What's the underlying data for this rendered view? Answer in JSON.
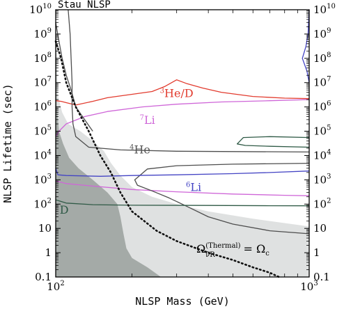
{
  "chart_data": {
    "type": "line",
    "title": "Stau NLSP",
    "xlabel": "NLSP Mass (GeV)",
    "ylabel": "NLSP Lifetime (sec)",
    "xscale": "log",
    "yscale": "log",
    "xlim": [
      100,
      1000
    ],
    "ylim": [
      0.1,
      10000000000
    ],
    "x_ticks": [
      {
        "value": 100,
        "base": "10",
        "exp": "2"
      },
      {
        "value": 1000,
        "base": "10",
        "exp": "3"
      }
    ],
    "y_ticks": [
      {
        "value": 0.1,
        "label": "0.1"
      },
      {
        "value": 1,
        "label": "1"
      },
      {
        "value": 10,
        "label": "10"
      },
      {
        "value": 100,
        "base": "10",
        "exp": "2"
      },
      {
        "value": 1000,
        "base": "10",
        "exp": "3"
      },
      {
        "value": 10000,
        "base": "10",
        "exp": "4"
      },
      {
        "value": 100000,
        "base": "10",
        "exp": "5"
      },
      {
        "value": 1000000,
        "base": "10",
        "exp": "6"
      },
      {
        "value": 10000000,
        "base": "10",
        "exp": "7"
      },
      {
        "value": 100000000,
        "base": "10",
        "exp": "8"
      },
      {
        "value": 1000000000,
        "base": "10",
        "exp": "9"
      },
      {
        "value": 10000000000,
        "base": "10",
        "exp": "10"
      }
    ],
    "regions": [
      {
        "id": "light-excluded-region",
        "color": "#dfe1e1",
        "points": [
          [
            100,
            10000000000
          ],
          [
            102,
            3000000
          ],
          [
            106,
            600000
          ],
          [
            112,
            200000
          ],
          [
            125,
            100000
          ],
          [
            140,
            40000
          ],
          [
            155,
            15000
          ],
          [
            165,
            5000
          ],
          [
            180,
            1500
          ],
          [
            200,
            500
          ],
          [
            240,
            200
          ],
          [
            300,
            100
          ],
          [
            400,
            50
          ],
          [
            600,
            25
          ],
          [
            1000,
            12
          ],
          [
            1000,
            0.1
          ],
          [
            100,
            0.1
          ]
        ]
      },
      {
        "id": "dark-excluded-region",
        "color": "#a4aaa7",
        "points": [
          [
            100,
            10000000000
          ],
          [
            101,
            1000000
          ],
          [
            103,
            100000
          ],
          [
            107,
            30000
          ],
          [
            113,
            8000
          ],
          [
            123,
            3000
          ],
          [
            140,
            1000
          ],
          [
            160,
            300
          ],
          [
            175,
            100
          ],
          [
            180,
            30
          ],
          [
            185,
            6
          ],
          [
            190,
            1.5
          ],
          [
            200,
            0.6
          ],
          [
            230,
            0.25
          ],
          [
            260,
            0.1
          ],
          [
            100,
            0.1
          ]
        ]
      }
    ],
    "series": [
      {
        "id": "he3-over-d-curve",
        "color": "#e23b2e",
        "points": [
          [
            100,
            1800000
          ],
          [
            105,
            1700000
          ],
          [
            110,
            1500000
          ],
          [
            120,
            1200000
          ],
          [
            140,
            1700000
          ],
          [
            160,
            2400000
          ],
          [
            200,
            3300000
          ],
          [
            240,
            4300000
          ],
          [
            270,
            7000000
          ],
          [
            300,
            13000000
          ],
          [
            330,
            9000000
          ],
          [
            380,
            6000000
          ],
          [
            450,
            4000000
          ],
          [
            600,
            2700000
          ],
          [
            800,
            2300000
          ],
          [
            1000,
            2200000
          ]
        ]
      },
      {
        "id": "li7-upper-curve",
        "color": "#cf66d8",
        "points": [
          [
            100,
            60000
          ],
          [
            103,
            100000
          ],
          [
            110,
            200000
          ],
          [
            130,
            400000
          ],
          [
            160,
            650000
          ],
          [
            220,
            1000000
          ],
          [
            300,
            1300000
          ],
          [
            450,
            1600000
          ],
          [
            700,
            1800000
          ],
          [
            1000,
            2000000
          ]
        ]
      },
      {
        "id": "li7-lower-curve",
        "color": "#cf66d8",
        "points": [
          [
            100,
            900
          ],
          [
            110,
            700
          ],
          [
            140,
            550
          ],
          [
            200,
            400
          ],
          [
            300,
            320
          ],
          [
            500,
            260
          ],
          [
            800,
            230
          ],
          [
            1000,
            220
          ]
        ]
      },
      {
        "id": "he4-curve",
        "color": "#4d4d4d",
        "points": [
          [
            112,
            10000000000
          ],
          [
            114,
            1000000000
          ],
          [
            115,
            100000000
          ],
          [
            116,
            10000000
          ],
          [
            116,
            1000000
          ],
          [
            117,
            200000
          ],
          [
            120,
            60000
          ],
          [
            135,
            22000
          ],
          [
            180,
            17000
          ],
          [
            300,
            15000
          ],
          [
            1000,
            14000
          ]
        ]
      },
      {
        "id": "he4-lower-curve",
        "color": "#4d4d4d",
        "points": [
          [
            100,
            3000000000
          ],
          [
            103,
            500000000
          ],
          [
            106,
            100000000
          ],
          [
            110,
            20000000
          ],
          [
            115,
            5000000
          ],
          [
            120,
            1000000
          ],
          [
            130,
            300000
          ],
          [
            140,
            100000
          ]
        ]
      },
      {
        "id": "mid-black-curve",
        "color": "#4d4d4d",
        "points": [
          [
            1000,
            6
          ],
          [
            700,
            8
          ],
          [
            500,
            15
          ],
          [
            400,
            30
          ],
          [
            330,
            80
          ],
          [
            280,
            180
          ],
          [
            240,
            350
          ],
          [
            210,
            600
          ],
          [
            205,
            1000
          ],
          [
            230,
            2800
          ],
          [
            300,
            3800
          ],
          [
            500,
            4400
          ],
          [
            1000,
            4800
          ]
        ]
      },
      {
        "id": "li6-curve",
        "color": "#4444c4",
        "points": [
          [
            100,
            3000
          ],
          [
            102,
            1600
          ],
          [
            110,
            1500
          ],
          [
            150,
            1400
          ],
          [
            200,
            1500
          ],
          [
            300,
            1600
          ],
          [
            500,
            1800
          ],
          [
            700,
            2000
          ],
          [
            1000,
            2300
          ]
        ]
      },
      {
        "id": "d-curve",
        "color": "#2f5a46",
        "points": [
          [
            100,
            150
          ],
          [
            110,
            110
          ],
          [
            140,
            95
          ],
          [
            200,
            90
          ],
          [
            400,
            88
          ],
          [
            700,
            86
          ],
          [
            1000,
            85
          ]
        ]
      },
      {
        "id": "green-loop-curve",
        "color": "#2f5a46",
        "points": [
          [
            1000,
            55000
          ],
          [
            700,
            60000
          ],
          [
            550,
            55000
          ],
          [
            520,
            30000
          ],
          [
            560,
            26000
          ],
          [
            700,
            24000
          ],
          [
            1000,
            22000
          ]
        ]
      },
      {
        "id": "blue-right-curve",
        "color": "#4444c4",
        "points": [
          [
            1000,
            10000000000
          ],
          [
            990,
            1000000000
          ],
          [
            970,
            300000000
          ],
          [
            940,
            100000000
          ],
          [
            980,
            30000000
          ],
          [
            1000,
            10000000
          ]
        ]
      },
      {
        "id": "thermal-relic-dotted-curve",
        "color": "#111111",
        "dashed": true,
        "points": [
          [
            100,
            500000000
          ],
          [
            105,
            100000000
          ],
          [
            110,
            10000000
          ],
          [
            120,
            1000000
          ],
          [
            135,
            100000
          ],
          [
            150,
            10000
          ],
          [
            165,
            2000
          ],
          [
            180,
            300
          ],
          [
            200,
            50
          ],
          [
            250,
            8
          ],
          [
            300,
            3
          ],
          [
            400,
            1
          ],
          [
            500,
            0.5
          ],
          [
            600,
            0.25
          ],
          [
            700,
            0.15
          ],
          [
            760,
            0.1
          ]
        ]
      }
    ],
    "annotations": [
      {
        "id": "he3-label",
        "base": "He/D",
        "pre_sup": "3",
        "color": "#e23b2e",
        "x": 300,
        "y": 2500000
      },
      {
        "id": "li7-label",
        "base": "Li",
        "pre_sup": "7",
        "color": "#cf66d8",
        "x": 230,
        "y": 200000
      },
      {
        "id": "he4-label",
        "base": "He",
        "pre_sup": "4",
        "color": "#555555",
        "x": 215,
        "y": 12000
      },
      {
        "id": "li6-label",
        "base": "Li",
        "pre_sup": "6",
        "color": "#4444c4",
        "x": 350,
        "y": 350
      },
      {
        "id": "d-label",
        "base": "D",
        "color": "#2f5a46",
        "x": 108,
        "y": 40
      },
      {
        "id": "relic-label",
        "lhs": "Ω",
        "lhs_sup": "(Thermal)",
        "lhs_sub": "ν̃R",
        "rhs": "= Ω",
        "rhs_sub": "c",
        "color": "#000000",
        "x": 500,
        "y": 1
      }
    ]
  }
}
